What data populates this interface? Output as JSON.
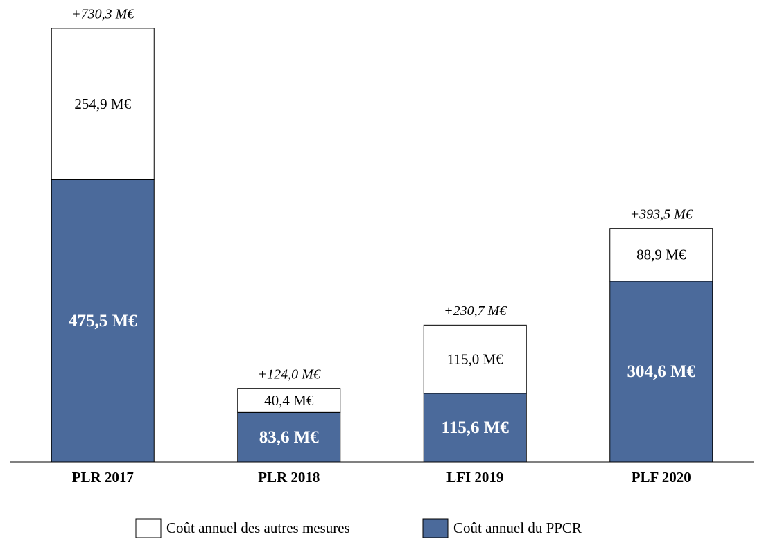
{
  "chart_data": {
    "type": "stacked_bar",
    "categories": [
      "PLR 2017",
      "PLR 2018",
      "LFI 2019",
      "PLF 2020"
    ],
    "series": [
      {
        "name": "Coût annuel du PPCR",
        "color": "#4b6a9b",
        "values": [
          475.5,
          83.6,
          115.6,
          304.6
        ],
        "value_labels": [
          "475,5 M€",
          "83,6 M€",
          "115,6 M€",
          "304,6 M€"
        ]
      },
      {
        "name": "Coût annuel des autres mesures",
        "color": "#ffffff",
        "values": [
          254.9,
          40.4,
          115.0,
          88.9
        ],
        "value_labels": [
          "254,9 M€",
          "40,4 M€",
          "115,0 M€",
          "88,9 M€"
        ]
      }
    ],
    "totals": {
      "values": [
        730.3,
        124.0,
        230.7,
        393.5
      ],
      "value_labels": [
        "+730,3 M€",
        "+124,0 M€",
        "+230,7 M€",
        "+393,5 M€"
      ]
    }
  }
}
